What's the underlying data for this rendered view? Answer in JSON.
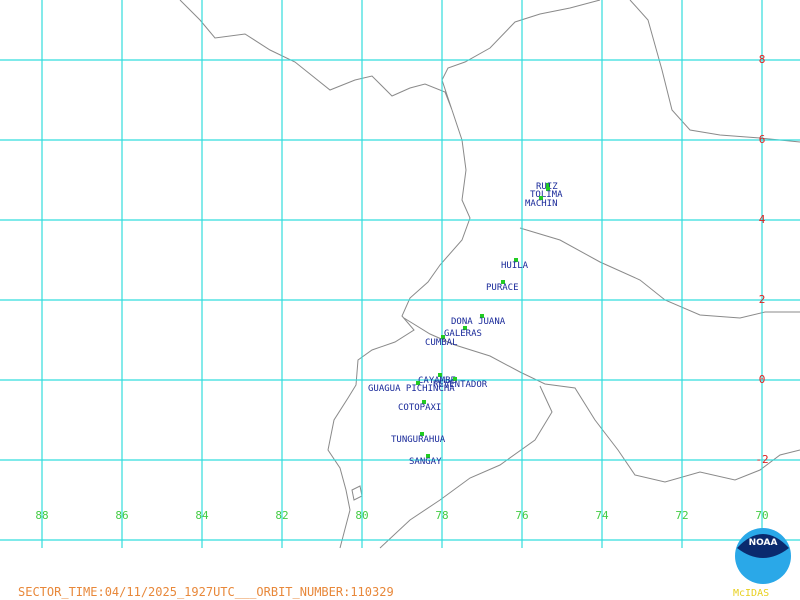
{
  "map": {
    "latitudes": [
      8,
      6,
      4,
      2,
      0,
      -2
    ],
    "longitudes": [
      88,
      86,
      84,
      82,
      80,
      78,
      76,
      74,
      72,
      70
    ],
    "volcanoes": [
      "RUIZ",
      "TOLIMA",
      "MACHIN",
      "HUILA",
      "PURACE",
      "DONA JUANA",
      "GALERAS",
      "CUMBAL",
      "CAYAMBE",
      "REVENTADOR",
      "GUAGUA PICHINCHA",
      "COTOPAXI",
      "TUNGURAHUA",
      "SANGAY"
    ],
    "footer": "SECTOR_TIME:04/11/2025_1927UTC___ORBIT_NUMBER:110329",
    "logo": {
      "noaa": "NOAA",
      "mcidas": "McIDAS"
    }
  }
}
